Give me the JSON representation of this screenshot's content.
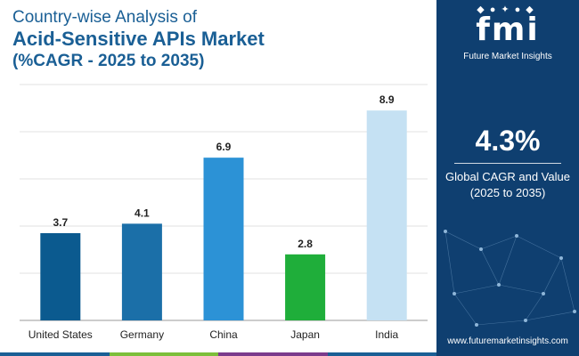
{
  "title": {
    "line1": "Country-wise Analysis of",
    "line2": "Acid-Sensitive APIs Market",
    "line3": "(%CAGR - 2025 to 2035)"
  },
  "chart_data": {
    "type": "bar",
    "title": "Country-wise Analysis of Acid-Sensitive APIs Market (%CAGR - 2025 to 2035)",
    "categories": [
      "United States",
      "Germany",
      "China",
      "Japan",
      "India"
    ],
    "values": [
      3.7,
      4.1,
      6.9,
      2.8,
      8.9
    ],
    "data_labels": [
      "3.7",
      "4.1",
      "6.9",
      "2.8",
      "8.9"
    ],
    "colors": [
      "#0b5a8f",
      "#1b6fa8",
      "#2c92d6",
      "#1fae3a",
      "#c5e1f3"
    ],
    "xlabel": "",
    "ylabel": "",
    "ylim": [
      0,
      10
    ],
    "grid": true
  },
  "sidebar": {
    "logo_text": "fmi",
    "logo_sub": "Future Market Insights",
    "stat_value": "4.3%",
    "stat_label_line1": "Global CAGR and Value",
    "stat_label_line2": "(2025 to 2035)",
    "website": "www.futuremarketinsights.com"
  },
  "colors": {
    "title": "#1a5f95",
    "panel": "#0f3f70",
    "grid": "#d9d9d9",
    "bottom_bar": [
      "#1a5f95",
      "#7cbf3a",
      "#7b3b8c",
      "#1a5f95"
    ]
  }
}
